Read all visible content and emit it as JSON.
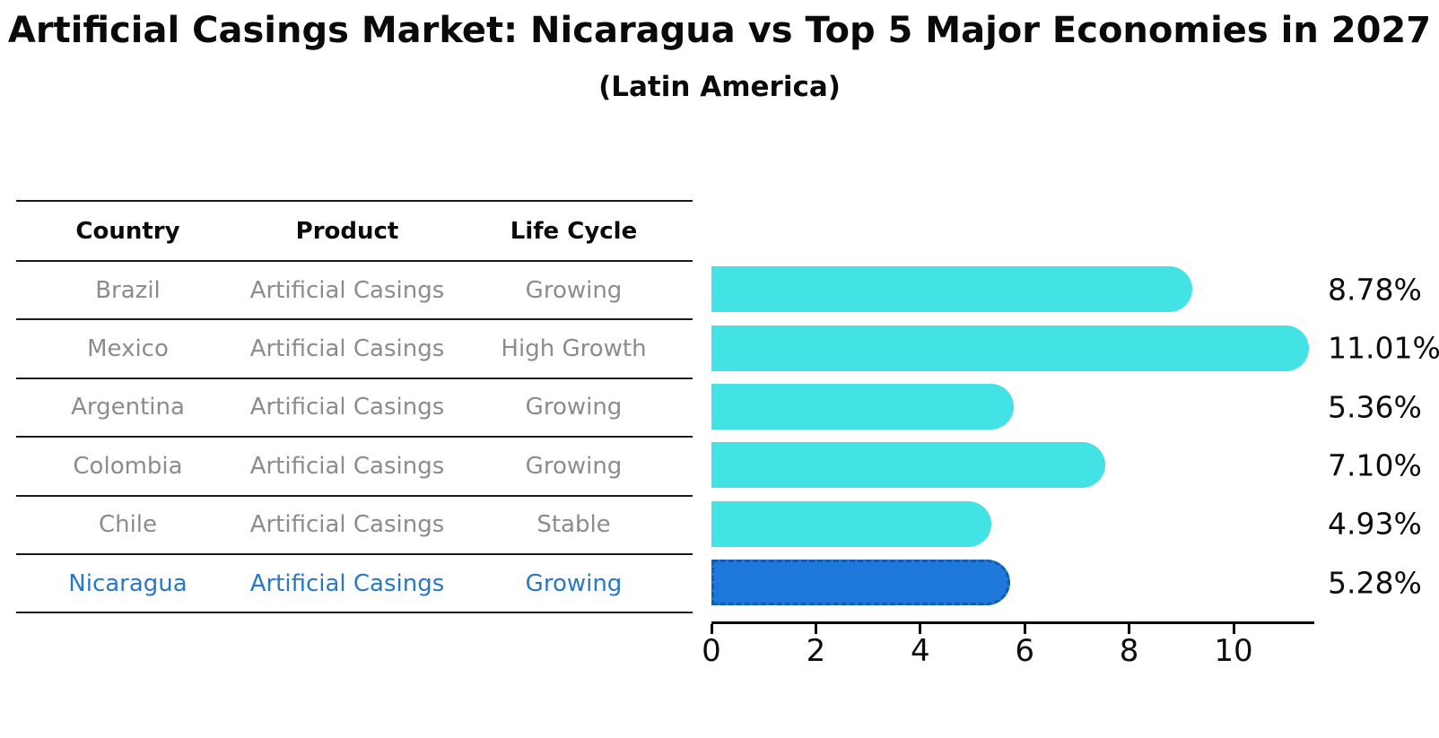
{
  "title": "Artificial Casings Market: Nicaragua vs Top 5 Major Economies in 2027",
  "subtitle": "(Latin America)",
  "table": {
    "headers": [
      "Country",
      "Product",
      "Life Cycle"
    ],
    "rows": [
      {
        "country": "Brazil",
        "product": "Artificial Casings",
        "life_cycle": "Growing",
        "highlight": false
      },
      {
        "country": "Mexico",
        "product": "Artificial Casings",
        "life_cycle": "High Growth",
        "highlight": false
      },
      {
        "country": "Argentina",
        "product": "Artificial Casings",
        "life_cycle": "Growing",
        "highlight": false
      },
      {
        "country": "Colombia",
        "product": "Artificial Casings",
        "life_cycle": "Growing",
        "highlight": false
      },
      {
        "country": "Chile",
        "product": "Artificial Casings",
        "life_cycle": "Stable",
        "highlight": false
      },
      {
        "country": "Nicaragua",
        "product": "Artificial Casings",
        "life_cycle": "Growing",
        "highlight": true
      }
    ]
  },
  "chart_data": {
    "type": "bar",
    "orientation": "horizontal",
    "title": "Artificial Casings Market: Nicaragua vs Top 5 Major Economies in 2027",
    "subtitle": "(Latin America)",
    "categories": [
      "Brazil",
      "Mexico",
      "Argentina",
      "Colombia",
      "Chile",
      "Nicaragua"
    ],
    "values": [
      8.78,
      11.01,
      5.36,
      7.1,
      4.93,
      5.28
    ],
    "value_labels": [
      "8.78%",
      "11.01%",
      "5.36%",
      "7.10%",
      "4.93%",
      "5.28%"
    ],
    "xlabel": "",
    "ylabel": "",
    "x_ticks": [
      0,
      2,
      4,
      6,
      8,
      10
    ],
    "xlim": [
      0,
      11.5
    ],
    "grid": false,
    "legend": false,
    "bar_color": "#43E2E4",
    "highlight_index": 5,
    "highlight_bar_color": "#1F78DB",
    "highlight_border_color": "#0F5CB0"
  },
  "colors": {
    "text": "#0A0A0A",
    "muted_text": "#8C8C8C",
    "highlight_text": "#2878C8",
    "table_line": "#1A1A1A"
  }
}
